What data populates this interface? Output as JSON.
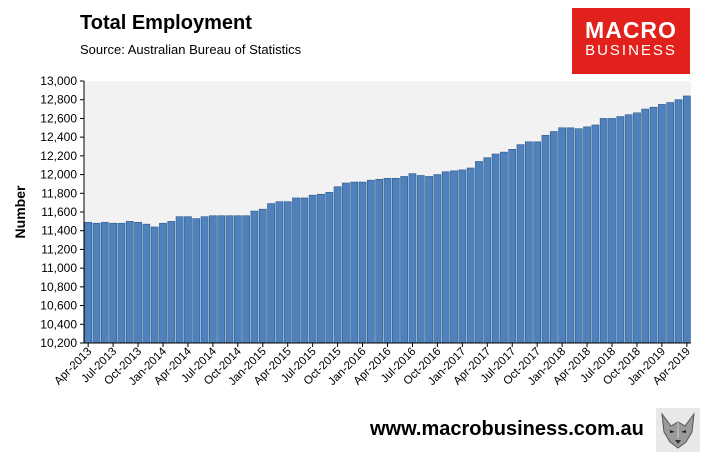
{
  "header": {
    "title": "Total Employment",
    "source": "Source: Australian Bureau of Statistics"
  },
  "logo": {
    "line1": "MACRO",
    "line2": "BUSINESS"
  },
  "footer": {
    "website": "www.macrobusiness.com.au",
    "mascot_icon": "wolf-icon"
  },
  "colors": {
    "bar": "#4f81bd",
    "bar_edge": "#2b5a90",
    "plot_bg": "#f2f2f2",
    "logo_bg": "#e2211c"
  },
  "chart_data": {
    "type": "bar",
    "title": "Total Employment",
    "ylabel": "Number",
    "xlabel": "",
    "ylim": [
      10200,
      13000
    ],
    "yticks": [
      10200,
      10400,
      10600,
      10800,
      11000,
      11200,
      11400,
      11600,
      11800,
      12000,
      12200,
      12400,
      12600,
      12800,
      13000
    ],
    "ytick_labels": [
      "10,200",
      "10,400",
      "10,600",
      "10,800",
      "11,000",
      "11,200",
      "11,400",
      "11,600",
      "11,800",
      "12,000",
      "12,200",
      "12,400",
      "12,600",
      "12,800",
      "13,000"
    ],
    "grid": false,
    "legend": "none",
    "x_tick_labels": [
      "Apr-2013",
      "Jul-2013",
      "Oct-2013",
      "Jan-2014",
      "Apr-2014",
      "Jul-2014",
      "Oct-2014",
      "Jan-2015",
      "Apr-2015",
      "Jul-2015",
      "Oct-2015",
      "Jan-2016",
      "Apr-2016",
      "Jul-2016",
      "Oct-2016",
      "Jan-2017",
      "Apr-2017",
      "Jul-2017",
      "Oct-2017",
      "Jan-2018",
      "Apr-2018",
      "Jul-2018",
      "Oct-2018",
      "Jan-2019",
      "Apr-2019"
    ],
    "x_tick_every": 3,
    "categories": [
      "Apr-2013",
      "May-2013",
      "Jun-2013",
      "Jul-2013",
      "Aug-2013",
      "Sep-2013",
      "Oct-2013",
      "Nov-2013",
      "Dec-2013",
      "Jan-2014",
      "Feb-2014",
      "Mar-2014",
      "Apr-2014",
      "May-2014",
      "Jun-2014",
      "Jul-2014",
      "Aug-2014",
      "Sep-2014",
      "Oct-2014",
      "Nov-2014",
      "Dec-2014",
      "Jan-2015",
      "Feb-2015",
      "Mar-2015",
      "Apr-2015",
      "May-2015",
      "Jun-2015",
      "Jul-2015",
      "Aug-2015",
      "Sep-2015",
      "Oct-2015",
      "Nov-2015",
      "Dec-2015",
      "Jan-2016",
      "Feb-2016",
      "Mar-2016",
      "Apr-2016",
      "May-2016",
      "Jun-2016",
      "Jul-2016",
      "Aug-2016",
      "Sep-2016",
      "Oct-2016",
      "Nov-2016",
      "Dec-2016",
      "Jan-2017",
      "Feb-2017",
      "Mar-2017",
      "Apr-2017",
      "May-2017",
      "Jun-2017",
      "Jul-2017",
      "Aug-2017",
      "Sep-2017",
      "Oct-2017",
      "Nov-2017",
      "Dec-2017",
      "Jan-2018",
      "Feb-2018",
      "Mar-2018",
      "Apr-2018",
      "May-2018",
      "Jun-2018",
      "Jul-2018",
      "Aug-2018",
      "Sep-2018",
      "Oct-2018",
      "Nov-2018",
      "Dec-2018",
      "Jan-2019",
      "Feb-2019",
      "Mar-2019",
      "Apr-2019"
    ],
    "values": [
      11490,
      11480,
      11490,
      11480,
      11480,
      11500,
      11490,
      11470,
      11440,
      11480,
      11500,
      11550,
      11550,
      11530,
      11550,
      11560,
      11560,
      11560,
      11560,
      11560,
      11610,
      11630,
      11690,
      11710,
      11710,
      11750,
      11750,
      11780,
      11790,
      11810,
      11870,
      11910,
      11920,
      11920,
      11940,
      11950,
      11960,
      11960,
      11980,
      12010,
      11990,
      11980,
      12000,
      12030,
      12040,
      12050,
      12070,
      12140,
      12180,
      12220,
      12240,
      12270,
      12320,
      12350,
      12350,
      12420,
      12460,
      12500,
      12500,
      12490,
      12510,
      12530,
      12600,
      12600,
      12620,
      12640,
      12660,
      12700,
      12720,
      12750,
      12770,
      12800,
      12840
    ]
  }
}
